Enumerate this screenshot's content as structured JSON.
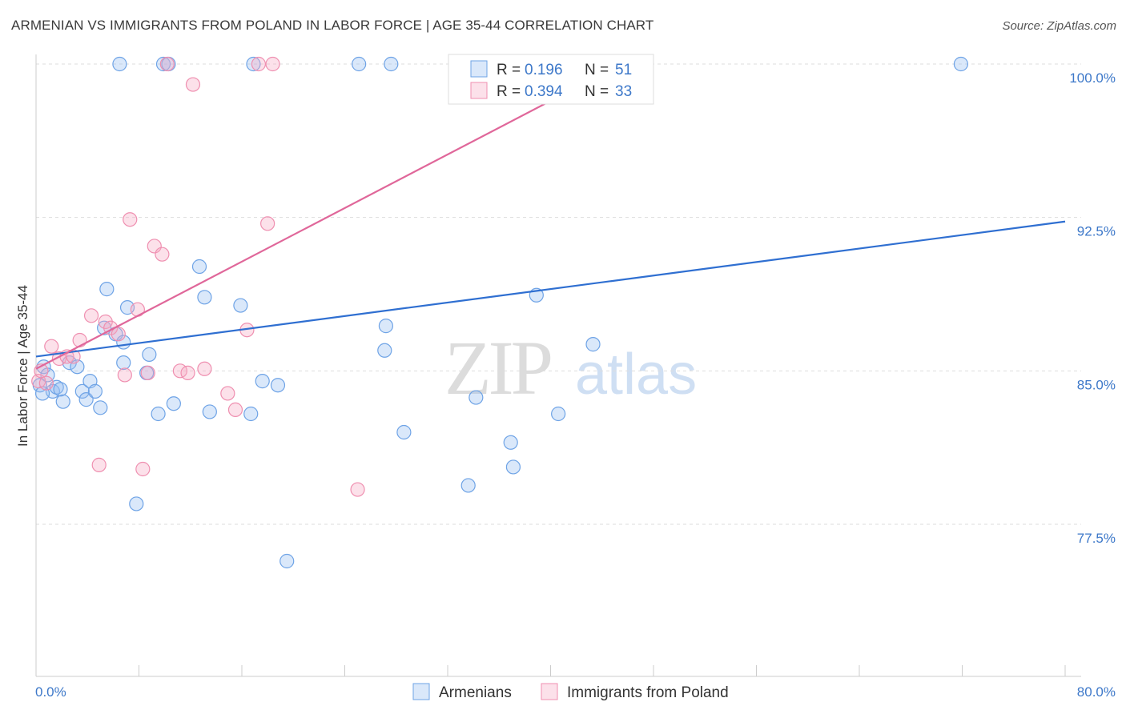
{
  "title": "ARMENIAN VS IMMIGRANTS FROM POLAND IN LABOR FORCE | AGE 35-44 CORRELATION CHART",
  "source": "Source: ZipAtlas.com",
  "watermark": {
    "zip": "ZIP",
    "atlas": "atlas"
  },
  "colors": {
    "armenians": "#6ea3e6",
    "armenians_fill": "rgba(150,190,240,0.35)",
    "armenians_line": "#2f6fd1",
    "poland": "#ef8fb0",
    "poland_fill": "rgba(245,170,195,0.35)",
    "poland_line": "#e0679a",
    "tick_text": "#3d78c9",
    "grid": "#dddddd"
  },
  "legend": {
    "r_label": "R =",
    "n_label": "N =",
    "items": [
      {
        "r": "0.196",
        "n": "51"
      },
      {
        "r": "0.394",
        "n": "33"
      }
    ]
  },
  "chart_data": {
    "type": "scatter",
    "title": "ARMENIAN VS IMMIGRANTS FROM POLAND IN LABOR FORCE | AGE 35-44 CORRELATION CHART",
    "xlabel": "",
    "ylabel": "In Labor Force | Age 35-44",
    "xlim": [
      0,
      80
    ],
    "ylim": [
      71.0,
      101.5
    ],
    "x_tick_labels": [
      "0.0%",
      "80.0%"
    ],
    "y_ticks": [
      77.5,
      85.0,
      92.5,
      100.0
    ],
    "y_tick_labels": [
      "77.5%",
      "85.0%",
      "92.5%",
      "100.0%"
    ],
    "grid": "horizontal dashed",
    "legend_position": "top-center",
    "series": [
      {
        "name": "Armenians",
        "r": 0.196,
        "n": 51,
        "trend": [
          [
            0,
            85.7
          ],
          [
            80,
            92.3
          ]
        ],
        "points": [
          [
            0.3,
            84.3
          ],
          [
            0.6,
            85.2
          ],
          [
            0.9,
            84.8
          ],
          [
            1.3,
            84.0
          ],
          [
            1.6,
            84.2
          ],
          [
            2.1,
            83.5
          ],
          [
            2.6,
            85.4
          ],
          [
            3.2,
            85.2
          ],
          [
            3.6,
            84.0
          ],
          [
            3.9,
            83.6
          ],
          [
            4.2,
            84.5
          ],
          [
            4.6,
            84.0
          ],
          [
            5.0,
            83.2
          ],
          [
            5.3,
            87.1
          ],
          [
            5.5,
            89.0
          ],
          [
            6.2,
            86.8
          ],
          [
            6.5,
            100.0
          ],
          [
            6.8,
            86.4
          ],
          [
            6.8,
            85.4
          ],
          [
            7.1,
            88.1
          ],
          [
            7.8,
            78.5
          ],
          [
            8.6,
            84.9
          ],
          [
            8.8,
            85.8
          ],
          [
            9.5,
            82.9
          ],
          [
            9.9,
            100.0
          ],
          [
            10.3,
            100.0
          ],
          [
            10.7,
            83.4
          ],
          [
            12.7,
            90.1
          ],
          [
            13.1,
            88.6
          ],
          [
            13.5,
            83.0
          ],
          [
            15.9,
            88.2
          ],
          [
            16.9,
            100.0
          ],
          [
            16.7,
            82.9
          ],
          [
            17.6,
            84.5
          ],
          [
            18.8,
            84.3
          ],
          [
            19.5,
            75.7
          ],
          [
            25.1,
            100.0
          ],
          [
            27.2,
            87.2
          ],
          [
            27.1,
            86.0
          ],
          [
            27.6,
            100.0
          ],
          [
            28.6,
            82.0
          ],
          [
            33.6,
            79.4
          ],
          [
            34.2,
            83.7
          ],
          [
            36.9,
            81.5
          ],
          [
            37.1,
            80.3
          ],
          [
            38.9,
            88.7
          ],
          [
            40.6,
            82.9
          ],
          [
            43.3,
            86.3
          ],
          [
            71.9,
            100.0
          ],
          [
            0.5,
            83.9
          ],
          [
            1.9,
            84.1
          ]
        ]
      },
      {
        "name": "Immigrants from Poland",
        "r": 0.394,
        "n": 33,
        "trend": [
          [
            0,
            85.1
          ],
          [
            40,
            98.2
          ]
        ],
        "points": [
          [
            0.2,
            84.5
          ],
          [
            0.4,
            85.0
          ],
          [
            1.2,
            86.2
          ],
          [
            1.8,
            85.6
          ],
          [
            2.4,
            85.7
          ],
          [
            3.4,
            86.5
          ],
          [
            2.9,
            85.7
          ],
          [
            4.3,
            87.7
          ],
          [
            4.9,
            80.4
          ],
          [
            5.4,
            87.4
          ],
          [
            5.8,
            87.1
          ],
          [
            6.4,
            86.8
          ],
          [
            6.9,
            84.8
          ],
          [
            7.3,
            92.4
          ],
          [
            7.9,
            88.0
          ],
          [
            8.3,
            80.2
          ],
          [
            8.7,
            84.9
          ],
          [
            9.2,
            91.1
          ],
          [
            9.8,
            90.7
          ],
          [
            10.2,
            100.0
          ],
          [
            11.2,
            85.0
          ],
          [
            11.8,
            84.9
          ],
          [
            12.2,
            99.0
          ],
          [
            13.1,
            85.1
          ],
          [
            14.9,
            83.9
          ],
          [
            15.5,
            83.1
          ],
          [
            16.4,
            87.0
          ],
          [
            17.3,
            100.0
          ],
          [
            18.0,
            92.2
          ],
          [
            18.4,
            100.0
          ],
          [
            25.0,
            79.2
          ],
          [
            32.7,
            100.0
          ],
          [
            0.8,
            84.4
          ]
        ]
      }
    ]
  },
  "bottom_legend": [
    "Armenians",
    "Immigrants from Poland"
  ]
}
